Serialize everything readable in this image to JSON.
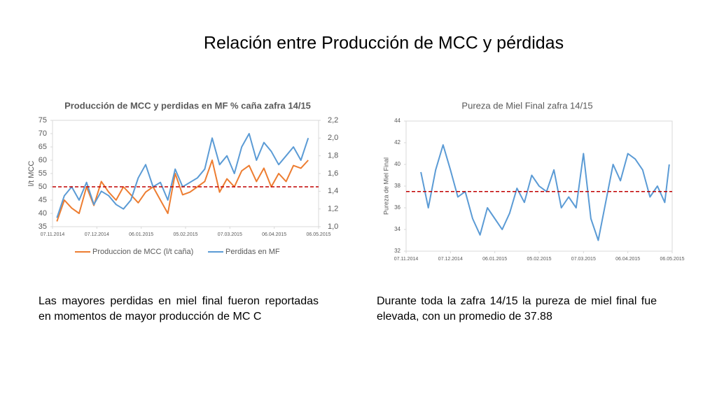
{
  "title": "Relación entre Producción de MCC y pérdidas",
  "captions": [
    "Las mayores perdidas en miel final fueron reportadas en momentos de mayor producción de MC C",
    "Durante toda la zafra 14/15 la pureza de miel final fue elevada, con un promedio de 37.88"
  ],
  "chart_data": [
    {
      "type": "line",
      "title": "Producción de MCC y perdidas en MF % caña zafra 14/15",
      "y_label": "l/t MCC",
      "x": [
        "2014-11-10",
        "2014-11-15",
        "2014-11-20",
        "2014-11-25",
        "2014-11-30",
        "2014-12-05",
        "2014-12-10",
        "2014-12-15",
        "2014-12-20",
        "2014-12-25",
        "2014-12-30",
        "2015-01-04",
        "2015-01-09",
        "2015-01-14",
        "2015-01-19",
        "2015-01-24",
        "2015-01-29",
        "2015-02-03",
        "2015-02-08",
        "2015-02-13",
        "2015-02-18",
        "2015-02-23",
        "2015-02-28",
        "2015-03-05",
        "2015-03-10",
        "2015-03-15",
        "2015-03-20",
        "2015-03-25",
        "2015-03-30",
        "2015-04-04",
        "2015-04-09",
        "2015-04-14",
        "2015-04-19",
        "2015-04-24",
        "2015-04-29"
      ],
      "xlim": [
        "2014-11-07",
        "2015-05-06"
      ],
      "xticks": [
        {
          "value": "2014-11-07",
          "label": "07.11.2014"
        },
        {
          "value": "2014-12-07",
          "label": "07.12.2014"
        },
        {
          "value": "2015-01-06",
          "label": "06.01.2015"
        },
        {
          "value": "2015-02-05",
          "label": "05.02.2015"
        },
        {
          "value": "2015-03-07",
          "label": "07.03.2015"
        },
        {
          "value": "2015-04-06",
          "label": "06.04.2015"
        },
        {
          "value": "2015-05-06",
          "label": "06.05.2015"
        }
      ],
      "ylim": [
        35,
        75
      ],
      "yticks": [
        35,
        40,
        45,
        50,
        55,
        60,
        65,
        70,
        75
      ],
      "y2lim": [
        1,
        2.2
      ],
      "y2ticks": [
        {
          "value": 1,
          "label": "1,0"
        },
        {
          "value": 1.2,
          "label": "1,2"
        },
        {
          "value": 1.4,
          "label": "1,4"
        },
        {
          "value": 1.6,
          "label": "1,6"
        },
        {
          "value": 1.8,
          "label": "1,8"
        },
        {
          "value": 2,
          "label": "2,0"
        },
        {
          "value": 2.2,
          "label": "2,2"
        }
      ],
      "grid": false,
      "legend": "bottom",
      "reference_line": {
        "value": 50,
        "color": "#c00000"
      },
      "series": [
        {
          "name": "Produccion de MCC (l/t caña)",
          "color": "#ed7d31",
          "values": [
            37,
            45,
            42,
            40,
            50,
            43,
            52,
            48,
            45,
            50,
            47,
            44,
            48,
            50,
            45,
            40,
            55,
            47,
            48,
            50,
            52,
            60,
            48,
            53,
            50,
            56,
            58,
            52,
            57,
            50,
            55,
            52,
            58,
            57,
            60
          ]
        },
        {
          "name": "Perdidas en MF",
          "color": "#5b9bd5",
          "axis": "y2",
          "values": [
            1.1,
            1.35,
            1.45,
            1.3,
            1.5,
            1.25,
            1.4,
            1.35,
            1.25,
            1.2,
            1.3,
            1.55,
            1.7,
            1.45,
            1.5,
            1.3,
            1.65,
            1.45,
            1.5,
            1.55,
            1.65,
            2.0,
            1.7,
            1.8,
            1.6,
            1.9,
            2.05,
            1.75,
            1.95,
            1.85,
            1.7,
            1.8,
            1.9,
            1.75,
            2.0
          ]
        }
      ]
    },
    {
      "type": "line",
      "title": "Pureza de Miel Final zafra 14/15",
      "y_label": "Pureza de Miel Final",
      "x": [
        "2014-11-17",
        "2014-11-22",
        "2014-11-27",
        "2014-12-02",
        "2014-12-07",
        "2014-12-12",
        "2014-12-17",
        "2014-12-22",
        "2014-12-27",
        "2015-01-01",
        "2015-01-06",
        "2015-01-11",
        "2015-01-16",
        "2015-01-21",
        "2015-01-26",
        "2015-01-31",
        "2015-02-05",
        "2015-02-10",
        "2015-02-15",
        "2015-02-20",
        "2015-02-25",
        "2015-03-02",
        "2015-03-07",
        "2015-03-12",
        "2015-03-17",
        "2015-03-22",
        "2015-03-27",
        "2015-04-01",
        "2015-04-06",
        "2015-04-11",
        "2015-04-16",
        "2015-04-21",
        "2015-04-26",
        "2015-05-01",
        "2015-05-04"
      ],
      "xlim": [
        "2014-11-07",
        "2015-05-06"
      ],
      "xticks": [
        {
          "value": "2014-11-07",
          "label": "07.11.2014"
        },
        {
          "value": "2014-12-07",
          "label": "07.12.2014"
        },
        {
          "value": "2015-01-06",
          "label": "06.01.2015"
        },
        {
          "value": "2015-02-05",
          "label": "05.02.2015"
        },
        {
          "value": "2015-03-07",
          "label": "07.03.2015"
        },
        {
          "value": "2015-04-06",
          "label": "06.04.2015"
        },
        {
          "value": "2015-05-06",
          "label": "06.05.2015"
        }
      ],
      "ylim": [
        32,
        44
      ],
      "yticks": [
        32,
        34,
        36,
        38,
        40,
        42,
        44
      ],
      "grid": false,
      "reference_line": {
        "value": 37.5,
        "color": "#c00000"
      },
      "series": [
        {
          "color": "#5b9bd5",
          "values": [
            39.3,
            36,
            39.5,
            41.8,
            39.5,
            37,
            37.5,
            35,
            33.5,
            36,
            35,
            34,
            35.5,
            37.8,
            36.5,
            39,
            38,
            37.5,
            39.5,
            36,
            37,
            36,
            41,
            35,
            33,
            36.5,
            40,
            38.5,
            41,
            40.5,
            39.5,
            37,
            38,
            36.5,
            40
          ]
        }
      ]
    }
  ]
}
